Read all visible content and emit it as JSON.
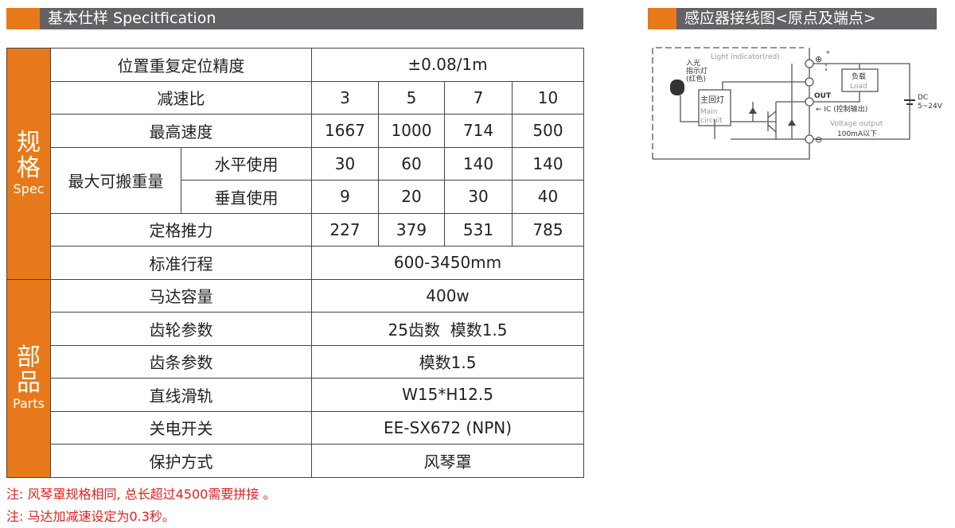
{
  "left_header": {
    "title": "基本仕样 Specitfication"
  },
  "right_header": {
    "title": "感应器接线图<原点及端点>"
  },
  "spec_group": {
    "cn": "规格",
    "en": "Spec"
  },
  "parts_group": {
    "cn": "部品",
    "en": "Parts"
  },
  "rows": {
    "precision": {
      "label": "位置重复定位精度",
      "value": "±0.08/1m"
    },
    "ratio": {
      "label": "减速比",
      "values": [
        "3",
        "5",
        "7",
        "10"
      ]
    },
    "speed": {
      "label": "最高速度",
      "values": [
        "1667",
        "1000",
        "714",
        "500"
      ]
    },
    "load": {
      "label": "最大可搬重量",
      "horizontal": {
        "label": "水平使用",
        "values": [
          "30",
          "60",
          "140",
          "140"
        ]
      },
      "vertical": {
        "label": "垂直使用",
        "values": [
          "9",
          "20",
          "30",
          "40"
        ]
      }
    },
    "thrust": {
      "label": "定格推力",
      "values": [
        "227",
        "379",
        "531",
        "785"
      ]
    },
    "stroke": {
      "label": "标准行程",
      "value": "600-3450mm"
    },
    "motor": {
      "label": "马达容量",
      "value": "400w"
    },
    "gear": {
      "label": "齿轮参数",
      "value": "25齿数  模数1.5"
    },
    "rack": {
      "label": "齿条参数",
      "value": "模数1.5"
    },
    "rail": {
      "label": "直线滑轨",
      "value": "W15*H12.5"
    },
    "switch": {
      "label": "关电开关",
      "value": "EE-SX672 (NPN)"
    },
    "cover": {
      "label": "保护方式",
      "value": "风琴罩"
    }
  },
  "notes": [
    "注: 风琴罩规格相同, 总长超过4500需要拼接 。",
    "注: 马达加减速设定为0.3秒。"
  ],
  "diagram": {
    "light_indicator": "Light indicator(red)",
    "indicator_cn": [
      "入光",
      "指示灯",
      "(红色)"
    ],
    "main_cn": "主回灯",
    "main_en": [
      "Main",
      "circuit"
    ],
    "load_cn": "负载",
    "load_en": "Load",
    "plus": "⊕",
    "star": "*",
    "minus": "⊖",
    "out": "OUT",
    "ic": "← IC (控制输出)",
    "voltage": "Voltage output",
    "current": "100mA以下",
    "dc": "DC",
    "dc_range": "5~24V"
  },
  "colors": {
    "accent": "#e8791a",
    "header_gray": "#616166",
    "note_red": "#e02020"
  }
}
